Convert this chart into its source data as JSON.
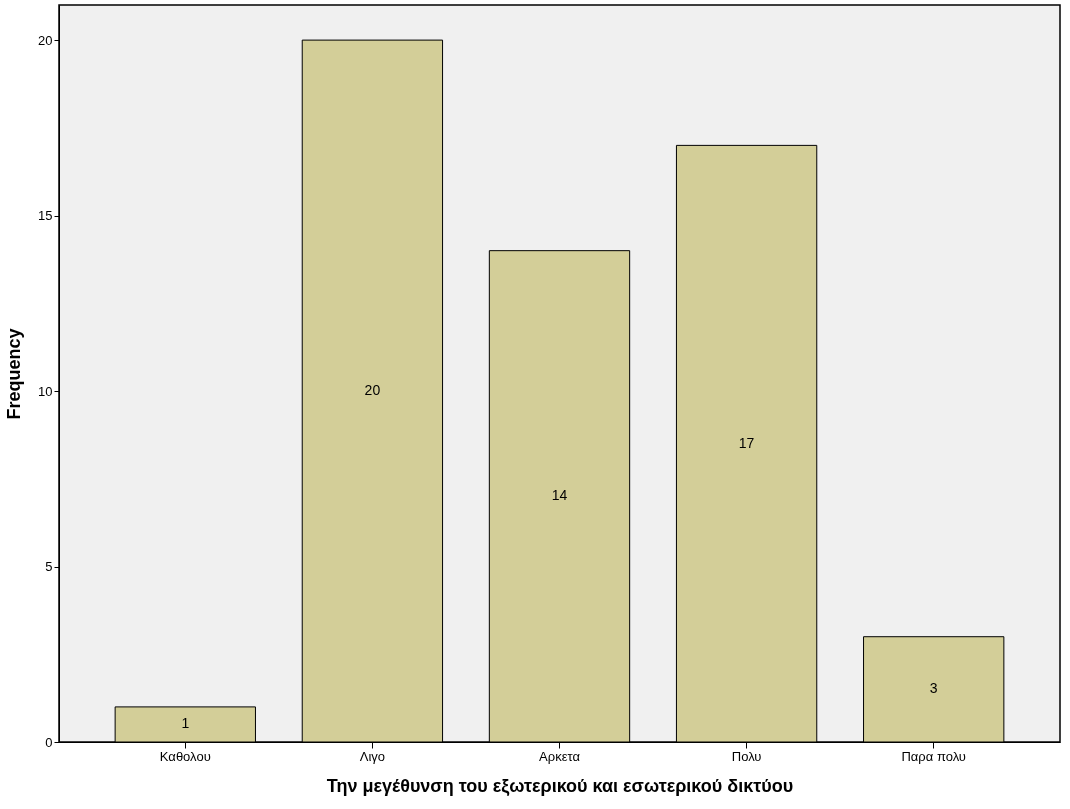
{
  "chart_data": {
    "type": "bar",
    "categories": [
      "Καθολου",
      "Λιγο",
      "Αρκετα",
      "Πολυ",
      "Παρα πολυ"
    ],
    "values": [
      1,
      20,
      14,
      17,
      3
    ],
    "color": "#d3ce98",
    "xlabel": "Την μεγέθυνση του εξωτερικού και εσωτερικού δικτύου",
    "ylabel": "Frequency",
    "ylim": [
      0,
      21
    ],
    "yticks": [
      0,
      5,
      10,
      15,
      20
    ],
    "grid": false,
    "data_labels": true
  }
}
